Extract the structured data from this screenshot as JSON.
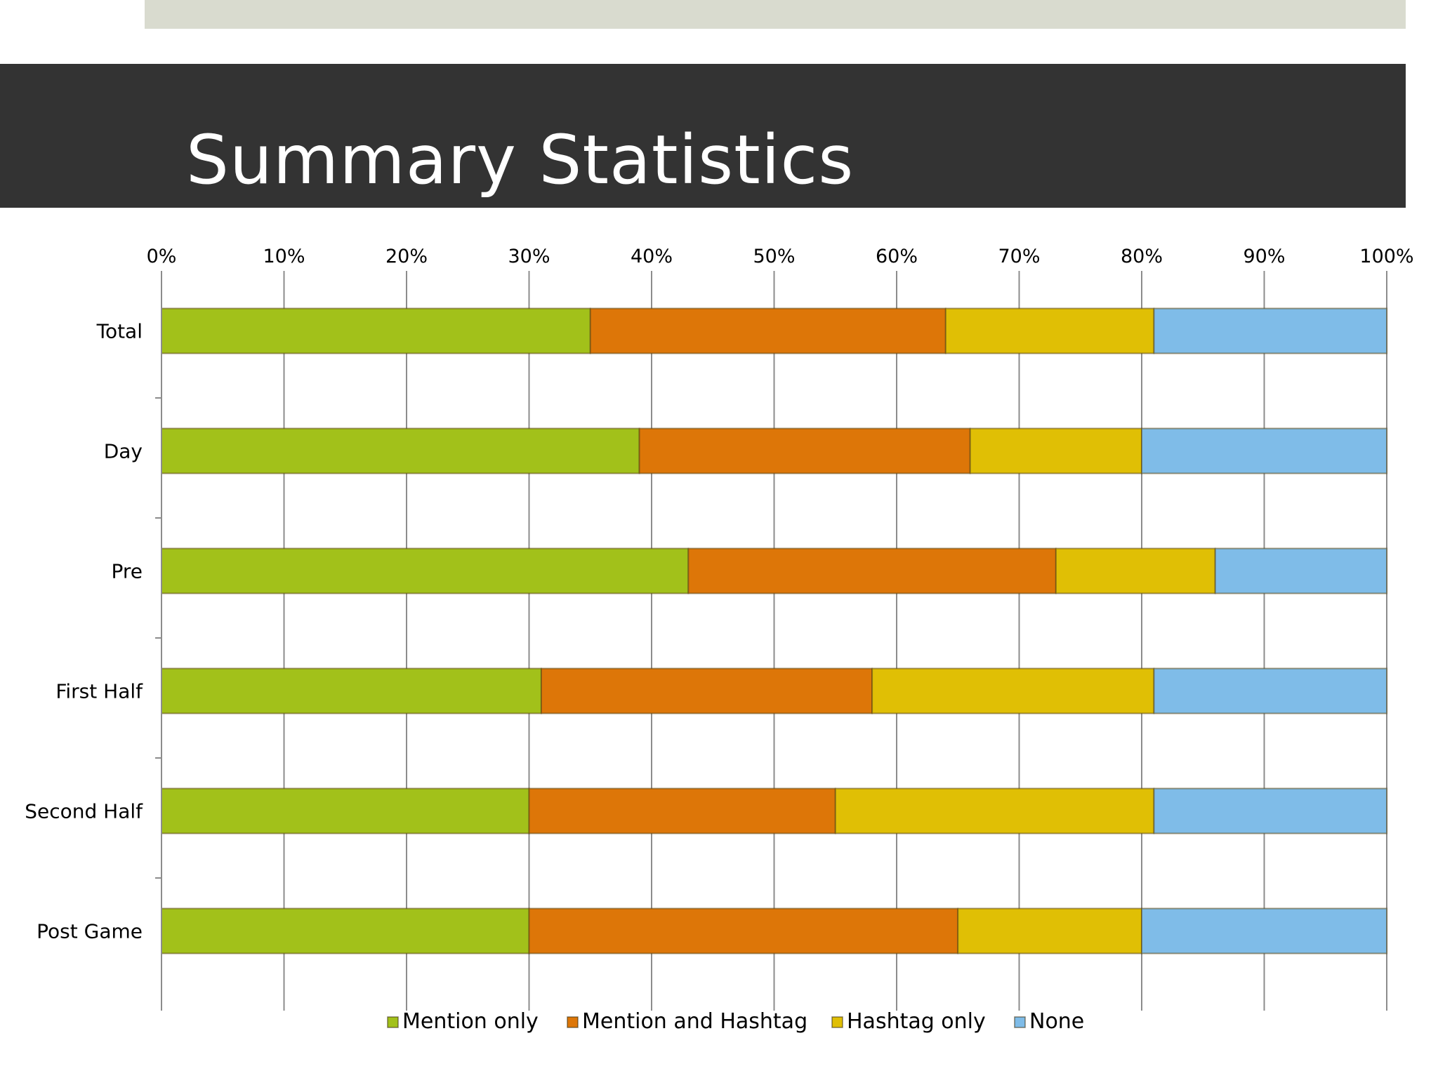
{
  "slide": {
    "title": "Summary Statistics"
  },
  "colors": {
    "mention_only": "#a2c11a",
    "mention_and_hashtag": "#dd7608",
    "hashtag_only": "#e0bf05",
    "none": "#7fbce8",
    "title_bar": "#333333",
    "band": "#d9dbcf"
  },
  "chart_data": {
    "type": "bar",
    "orientation": "horizontal",
    "stacked": "100%",
    "title": "",
    "xlabel": "",
    "ylabel": "",
    "xlim": [
      0,
      100
    ],
    "x_ticks": [
      "0%",
      "10%",
      "20%",
      "30%",
      "40%",
      "50%",
      "60%",
      "70%",
      "80%",
      "90%",
      "100%"
    ],
    "categories": [
      "Total",
      "Day",
      "Pre",
      "First Half",
      "Second Half",
      "Post Game"
    ],
    "series": [
      {
        "name": "Mention only",
        "color": "#a2c11a",
        "values": [
          35,
          39,
          43,
          31,
          30,
          30
        ]
      },
      {
        "name": "Mention and Hashtag",
        "color": "#dd7608",
        "values": [
          29,
          27,
          30,
          27,
          25,
          35
        ]
      },
      {
        "name": "Hashtag only",
        "color": "#e0bf05",
        "values": [
          17,
          14,
          13,
          23,
          26,
          15
        ]
      },
      {
        "name": "None",
        "color": "#7fbce8",
        "values": [
          19,
          20,
          14,
          19,
          19,
          20
        ]
      }
    ],
    "legend_position": "bottom",
    "grid": true
  }
}
